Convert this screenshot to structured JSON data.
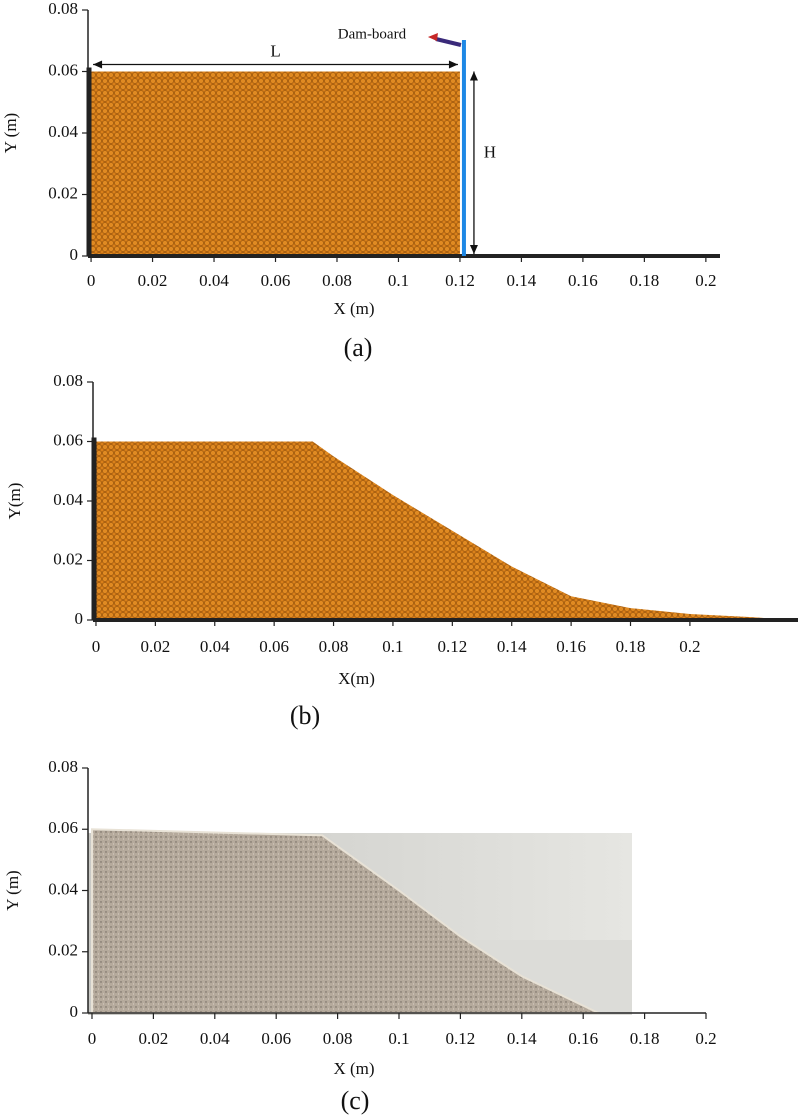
{
  "chart_data": [
    {
      "type": "area",
      "caption": "(a)",
      "xlabel": "X (m)",
      "ylabel": "Y (m)",
      "x": [
        0,
        0.12
      ],
      "values": [
        0.06,
        0.06
      ],
      "color": "#d9801a",
      "xlim": [
        -0.001,
        0.2046
      ],
      "ylim": [
        0,
        0.08
      ],
      "xticks": [
        0,
        0.02,
        0.04,
        0.06,
        0.08,
        0.1,
        0.12,
        0.14,
        0.16,
        0.18,
        0.2
      ],
      "yticks": [
        0,
        0.02,
        0.04,
        0.06,
        0.08
      ],
      "annotations": [
        "L",
        "H",
        "Dam-board"
      ]
    },
    {
      "type": "area",
      "caption": "(b)",
      "xlabel": "X(m)",
      "ylabel": "Y(m)",
      "x": [
        0,
        0.073,
        0.08,
        0.1,
        0.12,
        0.14,
        0.16,
        0.18,
        0.2,
        0.22,
        0.236
      ],
      "values": [
        0.06,
        0.06,
        0.055,
        0.042,
        0.03,
        0.018,
        0.008,
        0.004,
        0.002,
        0.001,
        0
      ],
      "color": "#d9801a",
      "xlim": [
        -0.001,
        0.2364
      ],
      "ylim": [
        0,
        0.08
      ],
      "xticks": [
        0,
        0.02,
        0.04,
        0.06,
        0.08,
        0.1,
        0.12,
        0.14,
        0.16,
        0.18,
        0.2
      ],
      "yticks": [
        0,
        0.02,
        0.04,
        0.06,
        0.08
      ]
    },
    {
      "type": "photo",
      "caption": "(c)",
      "xlabel": "X (m)",
      "ylabel": "Y (m)",
      "x": [
        0,
        0.075,
        0.1,
        0.12,
        0.14,
        0.165
      ],
      "values": [
        0.06,
        0.058,
        0.04,
        0.025,
        0.012,
        0
      ],
      "color": "#b5aa9c",
      "xlim": [
        -0.0013,
        0.2
      ],
      "ylim": [
        0,
        0.08
      ],
      "xticks": [
        0,
        0.02,
        0.04,
        0.06,
        0.08,
        0.1,
        0.12,
        0.14,
        0.16,
        0.18,
        0.2
      ],
      "yticks": [
        0,
        0.02,
        0.04,
        0.06,
        0.08
      ]
    }
  ]
}
